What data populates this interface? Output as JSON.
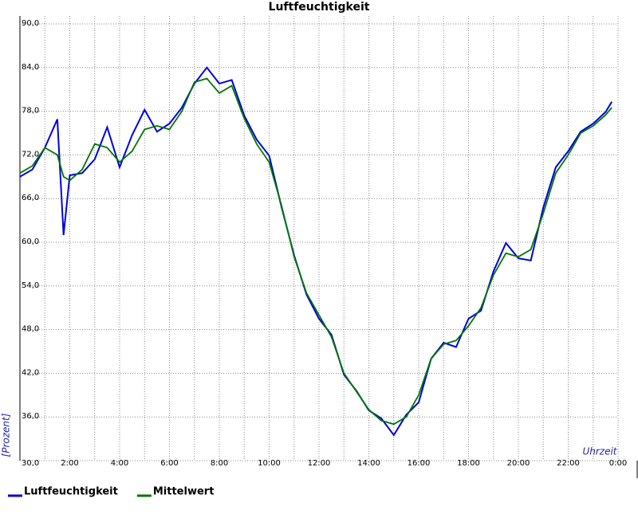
{
  "chart_data": {
    "type": "line",
    "title": "Luftfeuchtigkeit",
    "x_label": "Uhrzeit",
    "y_label": "[Prozent]",
    "x": [
      0,
      0.5,
      1,
      1.5,
      1.75,
      2,
      2.5,
      3,
      3.5,
      4,
      4.5,
      5,
      5.5,
      6,
      6.5,
      7,
      7.5,
      8,
      8.5,
      9,
      9.5,
      10,
      10.5,
      11,
      11.5,
      12,
      12.5,
      13,
      13.5,
      14,
      14.5,
      15,
      15.5,
      16,
      16.5,
      17,
      17.5,
      18,
      18.5,
      19,
      19.5,
      20,
      20.5,
      21,
      21.5,
      22,
      22.5,
      23,
      23.5,
      23.75
    ],
    "series": [
      {
        "name": "Luftfeuchtigkeit",
        "color": "#0000dd",
        "values": [
          69,
          70,
          73,
          76.9,
          61,
          69.2,
          69.5,
          71.4,
          75.8,
          70.3,
          74.7,
          78.2,
          75.2,
          76.3,
          78.5,
          81.8,
          84,
          81.8,
          82.3,
          77.4,
          74.1,
          71.9,
          64.8,
          58.2,
          52.8,
          49.5,
          47.3,
          41.8,
          39.6,
          36.9,
          35.8,
          33.5,
          36.3,
          38,
          44,
          46.2,
          45.6,
          49.5,
          50.6,
          56,
          59.9,
          57.8,
          57.5,
          64.8,
          70.3,
          72.5,
          75.2,
          76.3,
          77.9,
          79.3
        ]
      },
      {
        "name": "Mittelwert",
        "color": "#007700",
        "values": [
          69.5,
          70.5,
          73,
          72,
          69,
          68.5,
          70,
          73.5,
          73,
          71,
          72.5,
          75.5,
          76,
          75.5,
          78,
          82,
          82.5,
          80.5,
          81.5,
          77,
          73.5,
          71,
          65,
          58,
          53,
          50,
          47,
          42,
          39.5,
          37,
          35.5,
          35,
          36,
          39,
          44,
          46,
          46.5,
          48.5,
          51,
          55.5,
          58.5,
          58,
          59,
          64,
          69.5,
          72,
          75,
          76,
          77.5,
          78.5
        ]
      }
    ],
    "xlim": [
      0,
      24
    ],
    "xticks": [
      {
        "value": 2,
        "label": "2:00"
      },
      {
        "value": 4,
        "label": "4:00"
      },
      {
        "value": 6,
        "label": "6:00"
      },
      {
        "value": 8,
        "label": "8:00"
      },
      {
        "value": 10,
        "label": "10:00"
      },
      {
        "value": 12,
        "label": "12:00"
      },
      {
        "value": 14,
        "label": "14:00"
      },
      {
        "value": 16,
        "label": "16:00"
      },
      {
        "value": 18,
        "label": "18:00"
      },
      {
        "value": 20,
        "label": "20:00"
      },
      {
        "value": 22,
        "label": "22:00"
      },
      {
        "value": 24,
        "label": "0:00"
      }
    ],
    "xminorticks": [
      1,
      3,
      5,
      7,
      9,
      11,
      13,
      15,
      17,
      19,
      21,
      23
    ],
    "ylim": [
      30,
      90
    ],
    "yticks": [
      {
        "value": 30,
        "label": "30,0"
      },
      {
        "value": 36,
        "label": "36,0"
      },
      {
        "value": 42,
        "label": "42,0"
      },
      {
        "value": 48,
        "label": "48,0"
      },
      {
        "value": 54,
        "label": "54,0"
      },
      {
        "value": 60,
        "label": "60,0"
      },
      {
        "value": 66,
        "label": "66,0"
      },
      {
        "value": 72,
        "label": "72,0"
      },
      {
        "value": 78,
        "label": "78,0"
      },
      {
        "value": 84,
        "label": "84,0"
      },
      {
        "value": 90,
        "label": "90,0"
      }
    ],
    "grid": true
  }
}
